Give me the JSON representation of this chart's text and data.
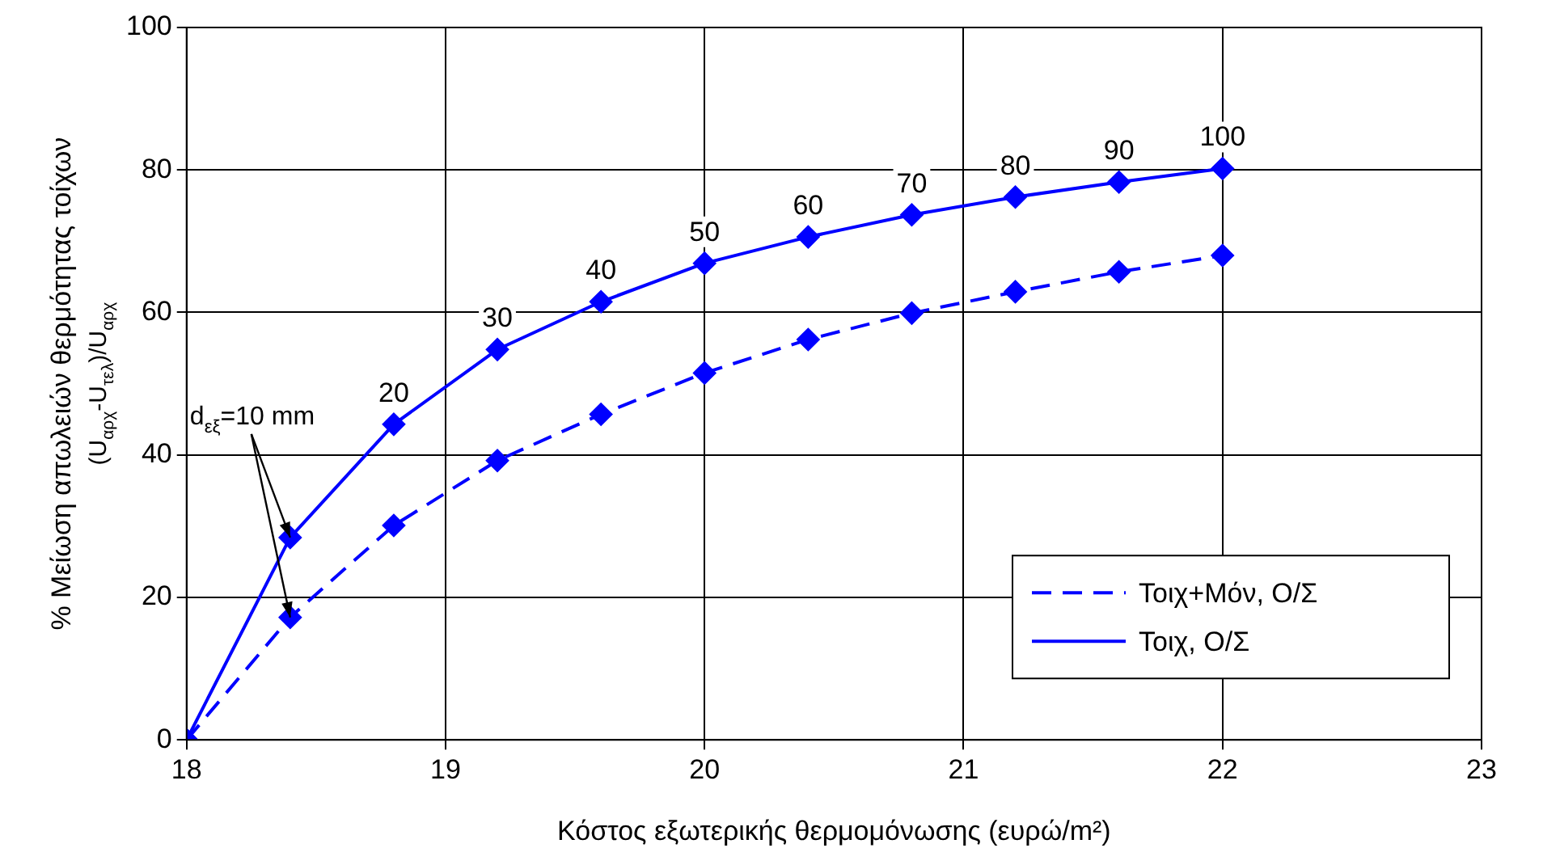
{
  "chart_data": {
    "type": "line",
    "xlabel": "Κόστος εξωτερικής θερμομόνωσης (ευρώ/m²)",
    "ylabel": "% Μείωση απωλειών θερμότητας τοίχων\n(U$_{αρχ}$-U$_{τελ}$)/U$_{αρχ}$",
    "x": [
      18,
      18.4,
      18.8,
      19.2,
      19.6,
      20,
      20.4,
      20.8,
      21.2,
      21.6,
      22
    ],
    "series": [
      {
        "name": "Τοιχ+Μόν, Ο/Σ",
        "color": "#0000ff",
        "line_style": "dashed",
        "values": [
          0,
          17.2,
          30.1,
          39.2,
          45.7,
          51.5,
          56.2,
          59.9,
          62.9,
          65.7,
          68
        ]
      },
      {
        "name": "Τοιχ, Ο/Σ",
        "color": "#0000ff",
        "line_style": "solid",
        "values": [
          0,
          28.4,
          44.3,
          54.8,
          61.5,
          66.9,
          70.6,
          73.7,
          76.2,
          78.3,
          80.2
        ]
      }
    ],
    "xlim": [
      18,
      23
    ],
    "xticks": [
      18,
      19,
      20,
      21,
      22,
      23
    ],
    "ylim": [
      0,
      100
    ],
    "yticks": [
      0,
      20,
      40,
      60,
      80,
      100
    ],
    "grid": true,
    "legend": "bottom right",
    "marker": "diamond",
    "annotations": [
      {
        "text": "d$_{εξ}$=10 mm",
        "x": 18.4,
        "y": 28.4
      },
      {
        "text": "20",
        "x": 18.8,
        "y": 44.3
      },
      {
        "text": "30",
        "x": 19.2,
        "y": 54.8
      },
      {
        "text": "40",
        "x": 19.6,
        "y": 61.5
      },
      {
        "text": "50",
        "x": 20,
        "y": 66.9
      },
      {
        "text": "60",
        "x": 20.4,
        "y": 70.6
      },
      {
        "text": "70",
        "x": 20.8,
        "y": 73.7
      },
      {
        "text": "80",
        "x": 21.2,
        "y": 76.2
      },
      {
        "text": "90",
        "x": 21.6,
        "y": 78.3
      },
      {
        "text": "100",
        "x": 22,
        "y": 80.2
      }
    ]
  }
}
